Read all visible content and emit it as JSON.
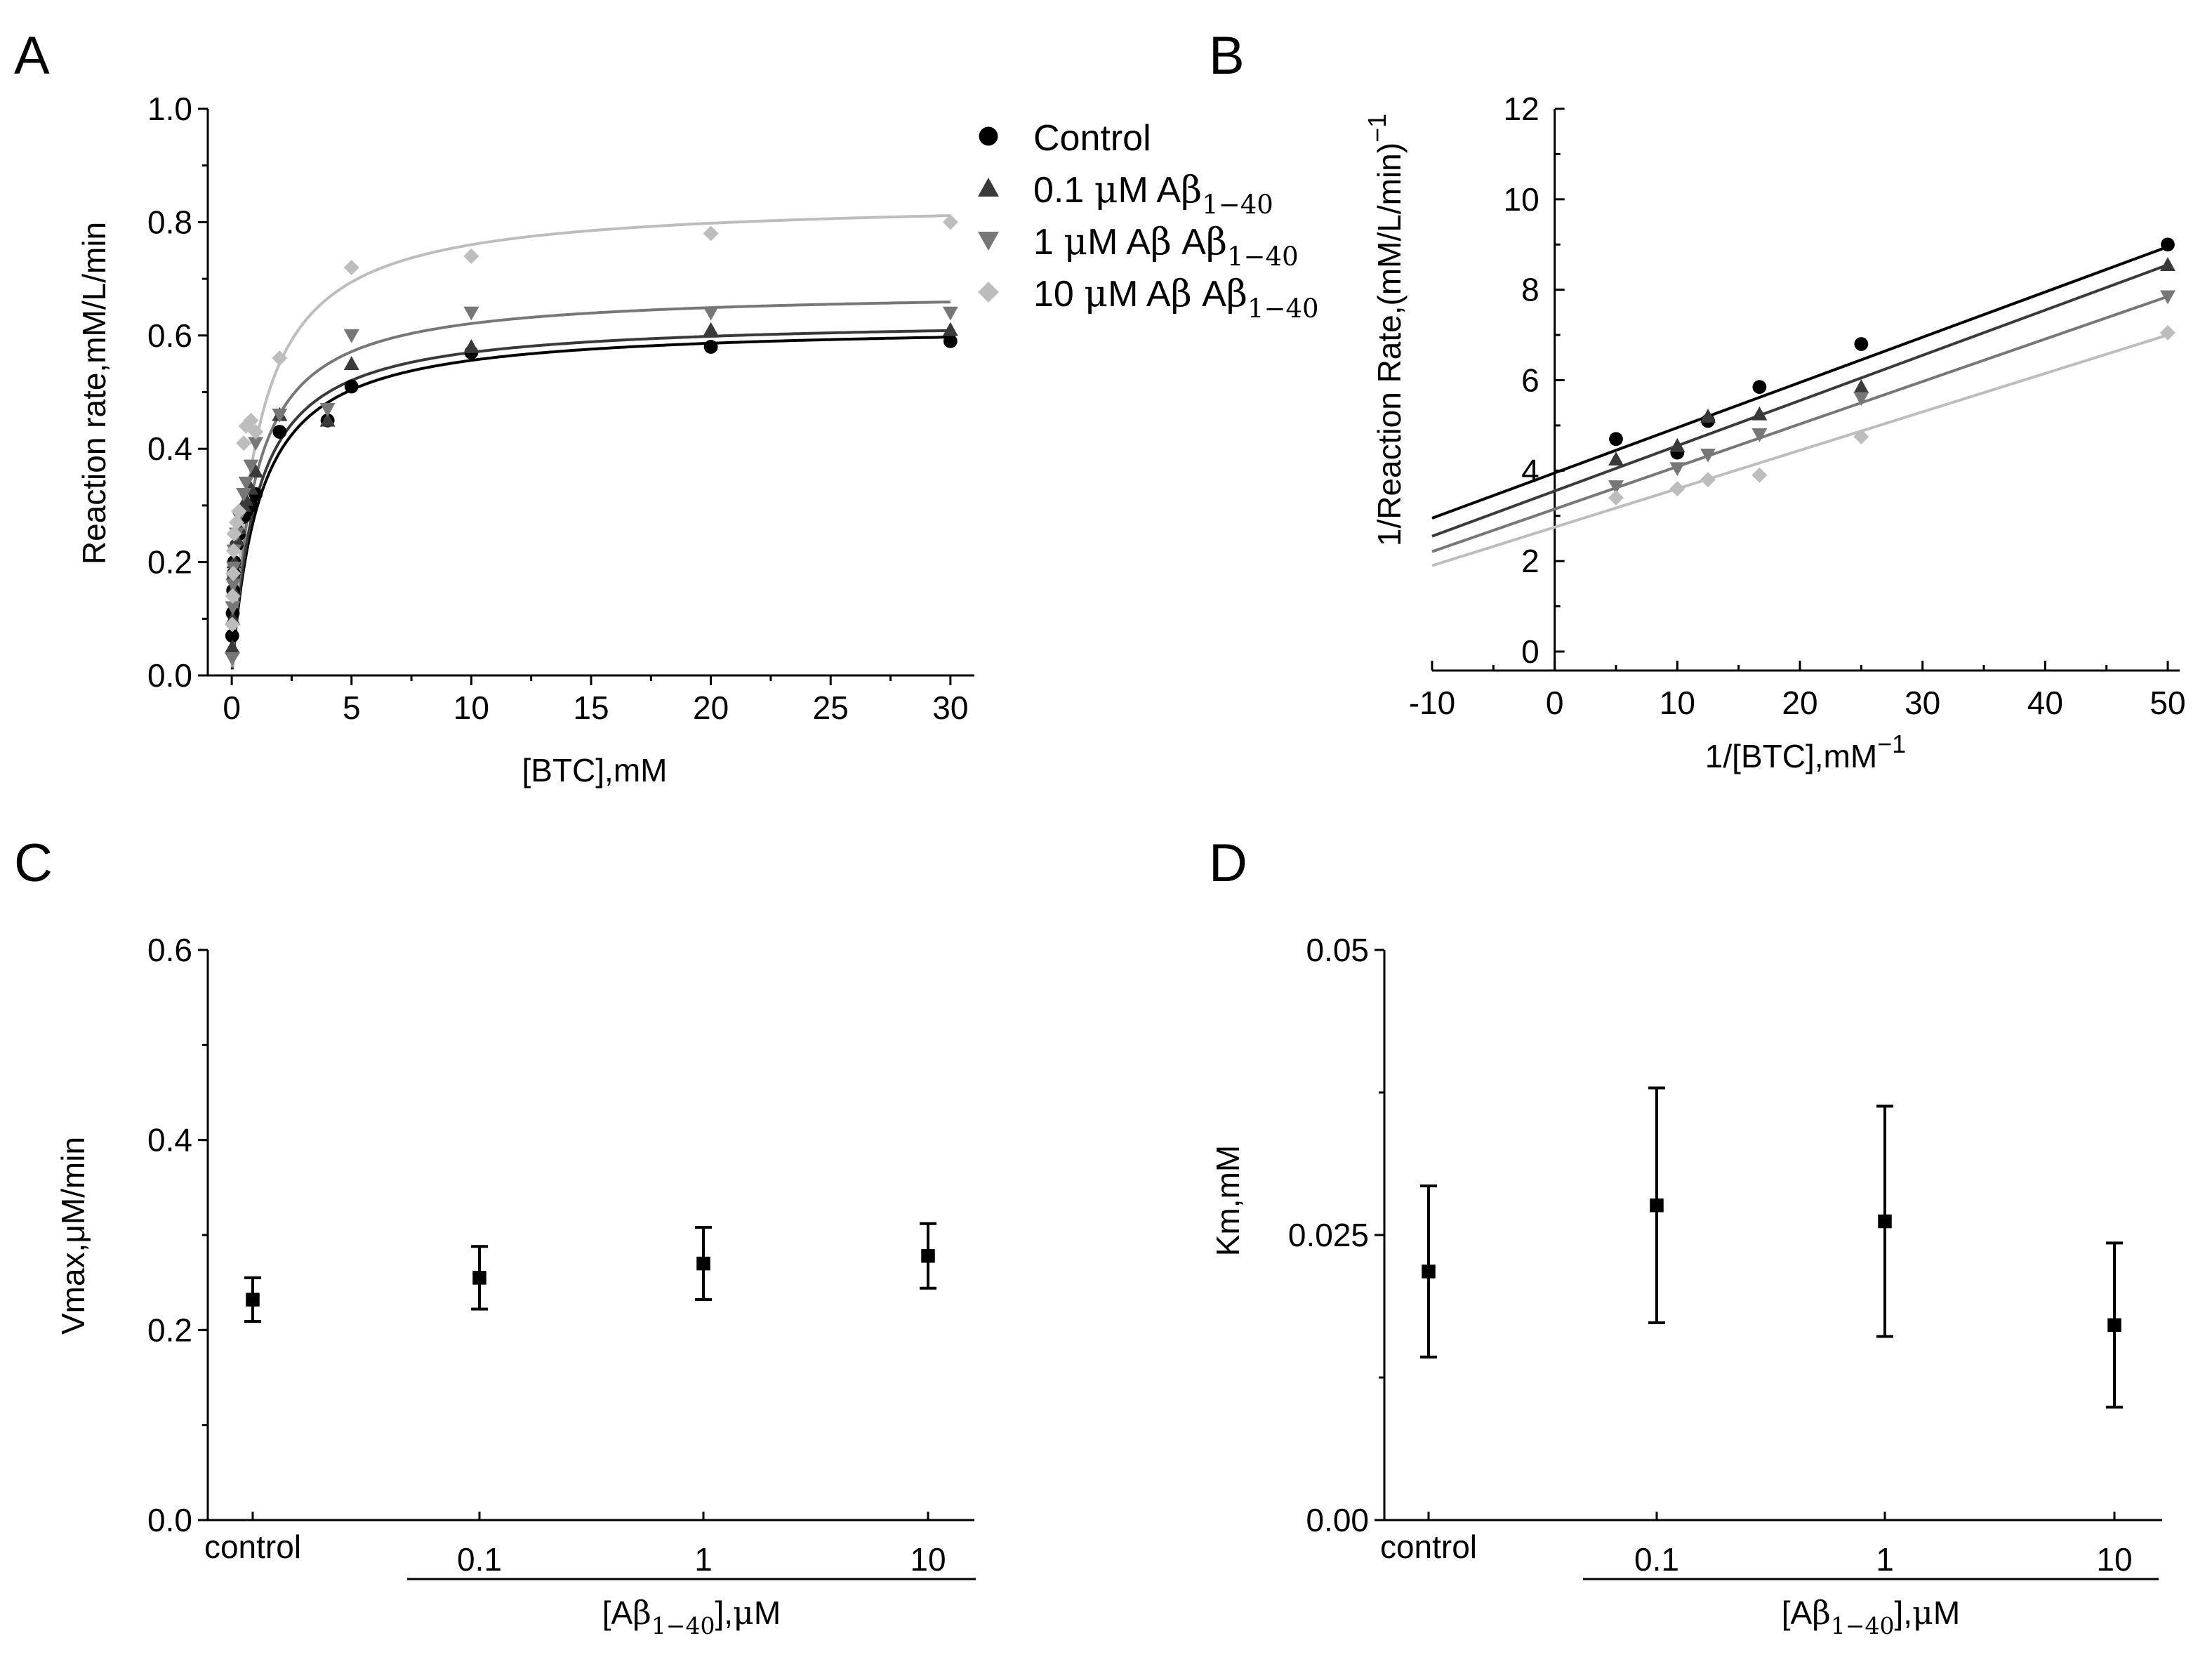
{
  "panels": {
    "A": {
      "letter": "A",
      "xlabel": "[BTC],mM",
      "ylabel": "Reaction rate,mM/L/min",
      "x_ticks": [
        "0",
        "5",
        "10",
        "15",
        "20",
        "25",
        "30"
      ],
      "y_ticks": [
        "0.0",
        "0.2",
        "0.4",
        "0.6",
        "0.8",
        "1.0"
      ],
      "legend": [
        {
          "marker": "circle",
          "color": "#000000",
          "parts": [
            {
              "t": "Control"
            }
          ]
        },
        {
          "marker": "triangle-up",
          "color": "#3a3a3a",
          "parts": [
            {
              "t": "0.1 "
            },
            {
              "t": "μ",
              "g": true
            },
            {
              "t": "M A"
            },
            {
              "t": "β",
              "g": true
            },
            {
              "t": "1−40",
              "sub": true
            }
          ]
        },
        {
          "marker": "triangle-down",
          "color": "#777777",
          "parts": [
            {
              "t": "1 "
            },
            {
              "t": "μ",
              "g": true
            },
            {
              "t": "M A"
            },
            {
              "t": "β",
              "g": true
            },
            {
              "t": " A"
            },
            {
              "t": "β",
              "g": true
            },
            {
              "t": "1−40",
              "sub": true
            }
          ]
        },
        {
          "marker": "diamond",
          "color": "#bdbdbd",
          "parts": [
            {
              "t": "10 "
            },
            {
              "t": "μ",
              "g": true
            },
            {
              "t": "M A"
            },
            {
              "t": "β",
              "g": true
            },
            {
              "t": " A"
            },
            {
              "t": "β",
              "g": true
            },
            {
              "t": "1−40",
              "sub": true
            }
          ]
        }
      ]
    },
    "B": {
      "letter": "B",
      "xlabel_parts": [
        {
          "t": "1/[BTC],mM"
        },
        {
          "t": "−1",
          "sup": true
        }
      ],
      "ylabel_parts": [
        {
          "t": "1/Reaction Rate,(mM/L/min)"
        },
        {
          "t": "−1",
          "sup": true
        }
      ],
      "x_ticks": [
        "-10",
        "0",
        "10",
        "20",
        "30",
        "40",
        "50"
      ],
      "y_ticks": [
        "0",
        "2",
        "4",
        "6",
        "8",
        "10",
        "12"
      ]
    },
    "C": {
      "letter": "C",
      "ylabel": "Vmax,μM/min",
      "xlabel_parts": [
        {
          "t": "[A"
        },
        {
          "t": "β",
          "g": true
        },
        {
          "t": "1−40",
          "sub": true
        },
        {
          "t": "],"
        },
        {
          "t": "μ",
          "g": true
        },
        {
          "t": "M"
        }
      ],
      "y_ticks": [
        "0.0",
        "0.2",
        "0.4",
        "0.6"
      ]
    },
    "D": {
      "letter": "D",
      "ylabel": "Km,mM",
      "xlabel_parts": [
        {
          "t": "[A"
        },
        {
          "t": "β",
          "g": true
        },
        {
          "t": "1−40",
          "sub": true
        },
        {
          "t": "],"
        },
        {
          "t": "μ",
          "g": true
        },
        {
          "t": "M"
        }
      ],
      "y_ticks": [
        "0.00",
        "0.025",
        "0.05"
      ]
    }
  },
  "chart_data": [
    {
      "panel": "A",
      "type": "scatter",
      "fit": "michaelis-menten",
      "xlim": [
        -1,
        31
      ],
      "ylim": [
        0,
        1.0
      ],
      "series": [
        {
          "name": "Control",
          "color": "#000000",
          "marker": "circle",
          "x": [
            0.02,
            0.04,
            0.06,
            0.08,
            0.1,
            0.2,
            0.3,
            0.5,
            0.6,
            0.8,
            1,
            2,
            4,
            5,
            10,
            20,
            30
          ],
          "y": [
            0.07,
            0.11,
            0.15,
            0.18,
            0.2,
            0.23,
            0.25,
            0.28,
            0.29,
            0.3,
            0.32,
            0.43,
            0.45,
            0.51,
            0.57,
            0.58,
            0.59
          ],
          "fit_vmax": 0.62,
          "fit_km": 1.15
        },
        {
          "name": "0.1 μM Aβ1−40",
          "color": "#3a3a3a",
          "marker": "triangle-up",
          "x": [
            0.02,
            0.04,
            0.06,
            0.08,
            0.1,
            0.2,
            0.3,
            0.5,
            0.6,
            0.8,
            1,
            2,
            4,
            5,
            10,
            20,
            30
          ],
          "y": [
            0.05,
            0.1,
            0.15,
            0.18,
            0.2,
            0.24,
            0.26,
            0.3,
            0.31,
            0.33,
            0.36,
            0.46,
            0.45,
            0.55,
            0.58,
            0.61,
            0.61
          ],
          "fit_vmax": 0.63,
          "fit_km": 1.05
        },
        {
          "name": "1 μM Aβ Aβ1−40",
          "color": "#777777",
          "marker": "triangle-down",
          "x": [
            0.02,
            0.04,
            0.06,
            0.08,
            0.1,
            0.2,
            0.3,
            0.5,
            0.6,
            0.8,
            1,
            2,
            4,
            5,
            10,
            20,
            30
          ],
          "y": [
            0.03,
            0.12,
            0.16,
            0.19,
            0.22,
            0.25,
            0.28,
            0.32,
            0.34,
            0.37,
            0.41,
            0.46,
            0.47,
            0.6,
            0.64,
            0.64,
            0.64
          ],
          "fit_vmax": 0.68,
          "fit_km": 0.95
        },
        {
          "name": "10 μM Aβ Aβ1−40",
          "color": "#bdbdbd",
          "marker": "diamond",
          "x": [
            0.02,
            0.04,
            0.06,
            0.08,
            0.1,
            0.2,
            0.3,
            0.5,
            0.6,
            0.8,
            1,
            2,
            5,
            10,
            20,
            30
          ],
          "y": [
            0.09,
            0.14,
            0.18,
            0.22,
            0.25,
            0.27,
            0.29,
            0.41,
            0.44,
            0.45,
            0.43,
            0.56,
            0.72,
            0.74,
            0.78,
            0.8
          ],
          "fit_vmax": 0.84,
          "fit_km": 1.05
        }
      ]
    },
    {
      "panel": "B",
      "type": "scatter",
      "fit": "linear",
      "xlim": [
        -10,
        51
      ],
      "ylim": [
        -0.5,
        12
      ],
      "series": [
        {
          "name": "Control",
          "color": "#000000",
          "marker": "circle",
          "x": [
            5,
            10,
            12.5,
            16.7,
            25,
            50
          ],
          "y": [
            4.7,
            4.4,
            5.1,
            5.85,
            6.8,
            9.0
          ],
          "fit_slope": 0.1,
          "fit_intercept": 3.95
        },
        {
          "name": "0.1 μM Aβ1−40",
          "color": "#3a3a3a",
          "marker": "triangle-up",
          "x": [
            5,
            10,
            12.5,
            16.7,
            25,
            50
          ],
          "y": [
            4.25,
            4.55,
            5.2,
            5.25,
            5.85,
            8.55
          ],
          "fit_slope": 0.1,
          "fit_intercept": 3.55
        },
        {
          "name": "1 μM Aβ Aβ1−40",
          "color": "#777777",
          "marker": "triangle-down",
          "x": [
            5,
            10,
            12.5,
            16.7,
            25,
            50
          ],
          "y": [
            3.65,
            4.05,
            4.35,
            4.8,
            5.6,
            7.85
          ],
          "fit_slope": 0.094,
          "fit_intercept": 3.15
        },
        {
          "name": "10 μM Aβ Aβ1−40",
          "color": "#bdbdbd",
          "marker": "diamond",
          "x": [
            5,
            10,
            12.5,
            16.7,
            25,
            50
          ],
          "y": [
            3.4,
            3.6,
            3.8,
            3.9,
            4.75,
            7.05
          ],
          "fit_slope": 0.085,
          "fit_intercept": 2.75
        }
      ]
    },
    {
      "panel": "C",
      "type": "scatter",
      "errorbars": true,
      "categories": [
        "control",
        "0.1",
        "1",
        "10"
      ],
      "ylim": [
        0,
        0.6
      ],
      "values": [
        0.232,
        0.255,
        0.27,
        0.278
      ],
      "errors": [
        0.023,
        0.033,
        0.038,
        0.034
      ]
    },
    {
      "panel": "D",
      "type": "scatter",
      "errorbars": true,
      "categories": [
        "control",
        "0.1",
        "1",
        "10"
      ],
      "ylim": [
        0,
        0.05
      ],
      "values": [
        0.0218,
        0.0276,
        0.0262,
        0.0171
      ],
      "errors": [
        0.0075,
        0.0103,
        0.0101,
        0.0072
      ]
    }
  ]
}
